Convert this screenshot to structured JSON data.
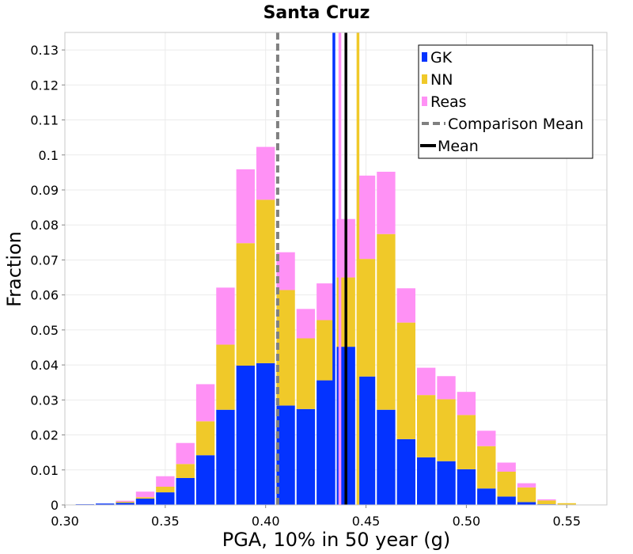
{
  "chart_data": {
    "type": "bar",
    "stacked": true,
    "title": "Santa Cruz",
    "xlabel": "PGA, 10% in 50 year (g)",
    "ylabel": "Fraction",
    "xlim": [
      0.3,
      0.57
    ],
    "ylim": [
      0,
      0.135
    ],
    "bin_width": 0.01,
    "bin_centers": [
      0.31,
      0.32,
      0.33,
      0.34,
      0.35,
      0.36,
      0.37,
      0.38,
      0.39,
      0.4,
      0.41,
      0.42,
      0.43,
      0.44,
      0.45,
      0.46,
      0.47,
      0.48,
      0.49,
      0.5,
      0.51,
      0.52,
      0.53,
      0.54,
      0.55,
      0.56
    ],
    "series": [
      {
        "name": "GK",
        "color": "#0433ff",
        "values": [
          0.0002,
          0.0004,
          0.0006,
          0.0018,
          0.0036,
          0.0077,
          0.0142,
          0.0272,
          0.0398,
          0.0405,
          0.0284,
          0.0274,
          0.0356,
          0.0452,
          0.0367,
          0.0272,
          0.0188,
          0.0136,
          0.0125,
          0.0102,
          0.0047,
          0.0024,
          0.0008,
          0.0002,
          0.0,
          0.0
        ]
      },
      {
        "name": "NN",
        "color": "#f0c929",
        "values": [
          0.0,
          0.0,
          0.0003,
          0.0004,
          0.0016,
          0.004,
          0.0097,
          0.0186,
          0.035,
          0.0467,
          0.033,
          0.0202,
          0.0172,
          0.0198,
          0.0336,
          0.0502,
          0.0333,
          0.0178,
          0.0177,
          0.0155,
          0.0121,
          0.0071,
          0.0042,
          0.0011,
          0.0005,
          0.0
        ]
      },
      {
        "name": "Reas",
        "color": "#ff91f5",
        "values": [
          0.0,
          0.0,
          0.0003,
          0.0016,
          0.003,
          0.006,
          0.0106,
          0.0163,
          0.0211,
          0.0151,
          0.0108,
          0.0084,
          0.0105,
          0.0167,
          0.0238,
          0.0178,
          0.0098,
          0.0078,
          0.0066,
          0.0066,
          0.0044,
          0.0026,
          0.0012,
          0.0003,
          0.0,
          0.0
        ]
      }
    ],
    "vertical_lines": [
      {
        "name": "Comparison Mean",
        "x": 0.406,
        "color": "#808080",
        "style": "dashed"
      },
      {
        "name": "GK mean",
        "x": 0.434,
        "color": "#0433ff",
        "style": "solid"
      },
      {
        "name": "Reas mean",
        "x": 0.437,
        "color": "#ff91f5",
        "style": "solid"
      },
      {
        "name": "Mean",
        "x": 0.44,
        "color": "#000000",
        "style": "solid"
      },
      {
        "name": "NN mean",
        "x": 0.446,
        "color": "#f0c929",
        "style": "solid"
      }
    ],
    "x_ticks": [
      0.3,
      0.35,
      0.4,
      0.45,
      0.5,
      0.55
    ],
    "x_tick_labels": [
      "0.30",
      "0.35",
      "0.40",
      "0.45",
      "0.50",
      "0.55"
    ],
    "y_ticks": [
      0,
      0.01,
      0.02,
      0.03,
      0.04,
      0.05,
      0.06,
      0.07,
      0.08,
      0.09,
      0.1,
      0.11,
      0.12,
      0.13
    ],
    "y_tick_labels": [
      "0",
      "0.01",
      "0.02",
      "0.03",
      "0.04",
      "0.05",
      "0.06",
      "0.07",
      "0.08",
      "0.09",
      "0.1",
      "0.11",
      "0.12",
      "0.13"
    ],
    "legend": {
      "position": "top-right",
      "entries": [
        {
          "label": "GK",
          "kind": "patch",
          "color": "#0433ff"
        },
        {
          "label": "NN",
          "kind": "patch",
          "color": "#f0c929"
        },
        {
          "label": "Reas",
          "kind": "patch",
          "color": "#ff91f5"
        },
        {
          "label": "Comparison Mean",
          "kind": "dashed-line",
          "color": "#808080"
        },
        {
          "label": "Mean",
          "kind": "solid-line",
          "color": "#000000"
        }
      ]
    },
    "grid": true
  }
}
